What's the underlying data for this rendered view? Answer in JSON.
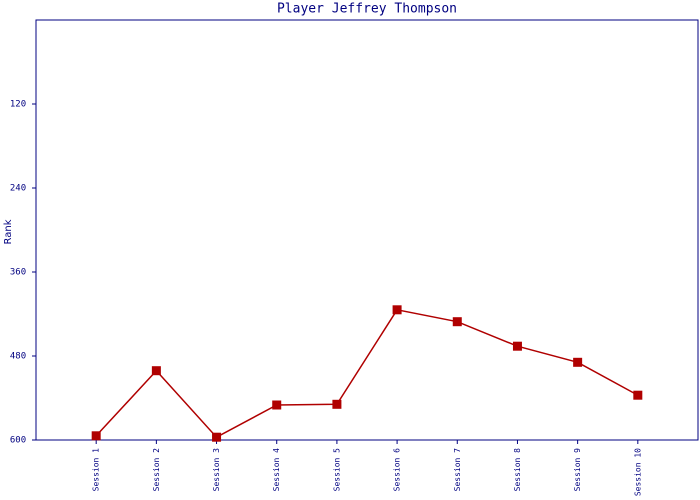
{
  "chart_data": {
    "type": "line",
    "title": "Player Jeffrey Thompson",
    "y_label": "Rank",
    "categories": [
      "Session 1",
      "Session 2",
      "Session 3",
      "Session 4",
      "Session 5",
      "Session 6",
      "Session 7",
      "Session 8",
      "Session 9",
      "Session 10"
    ],
    "values": [
      594,
      501,
      596,
      550,
      549,
      414,
      431,
      466,
      489,
      536
    ],
    "color": "#b00000",
    "axis_color": "#000080",
    "ylim": [
      0,
      600
    ],
    "y_inverted": true,
    "yticks": [
      120,
      240,
      360,
      480,
      600
    ]
  }
}
